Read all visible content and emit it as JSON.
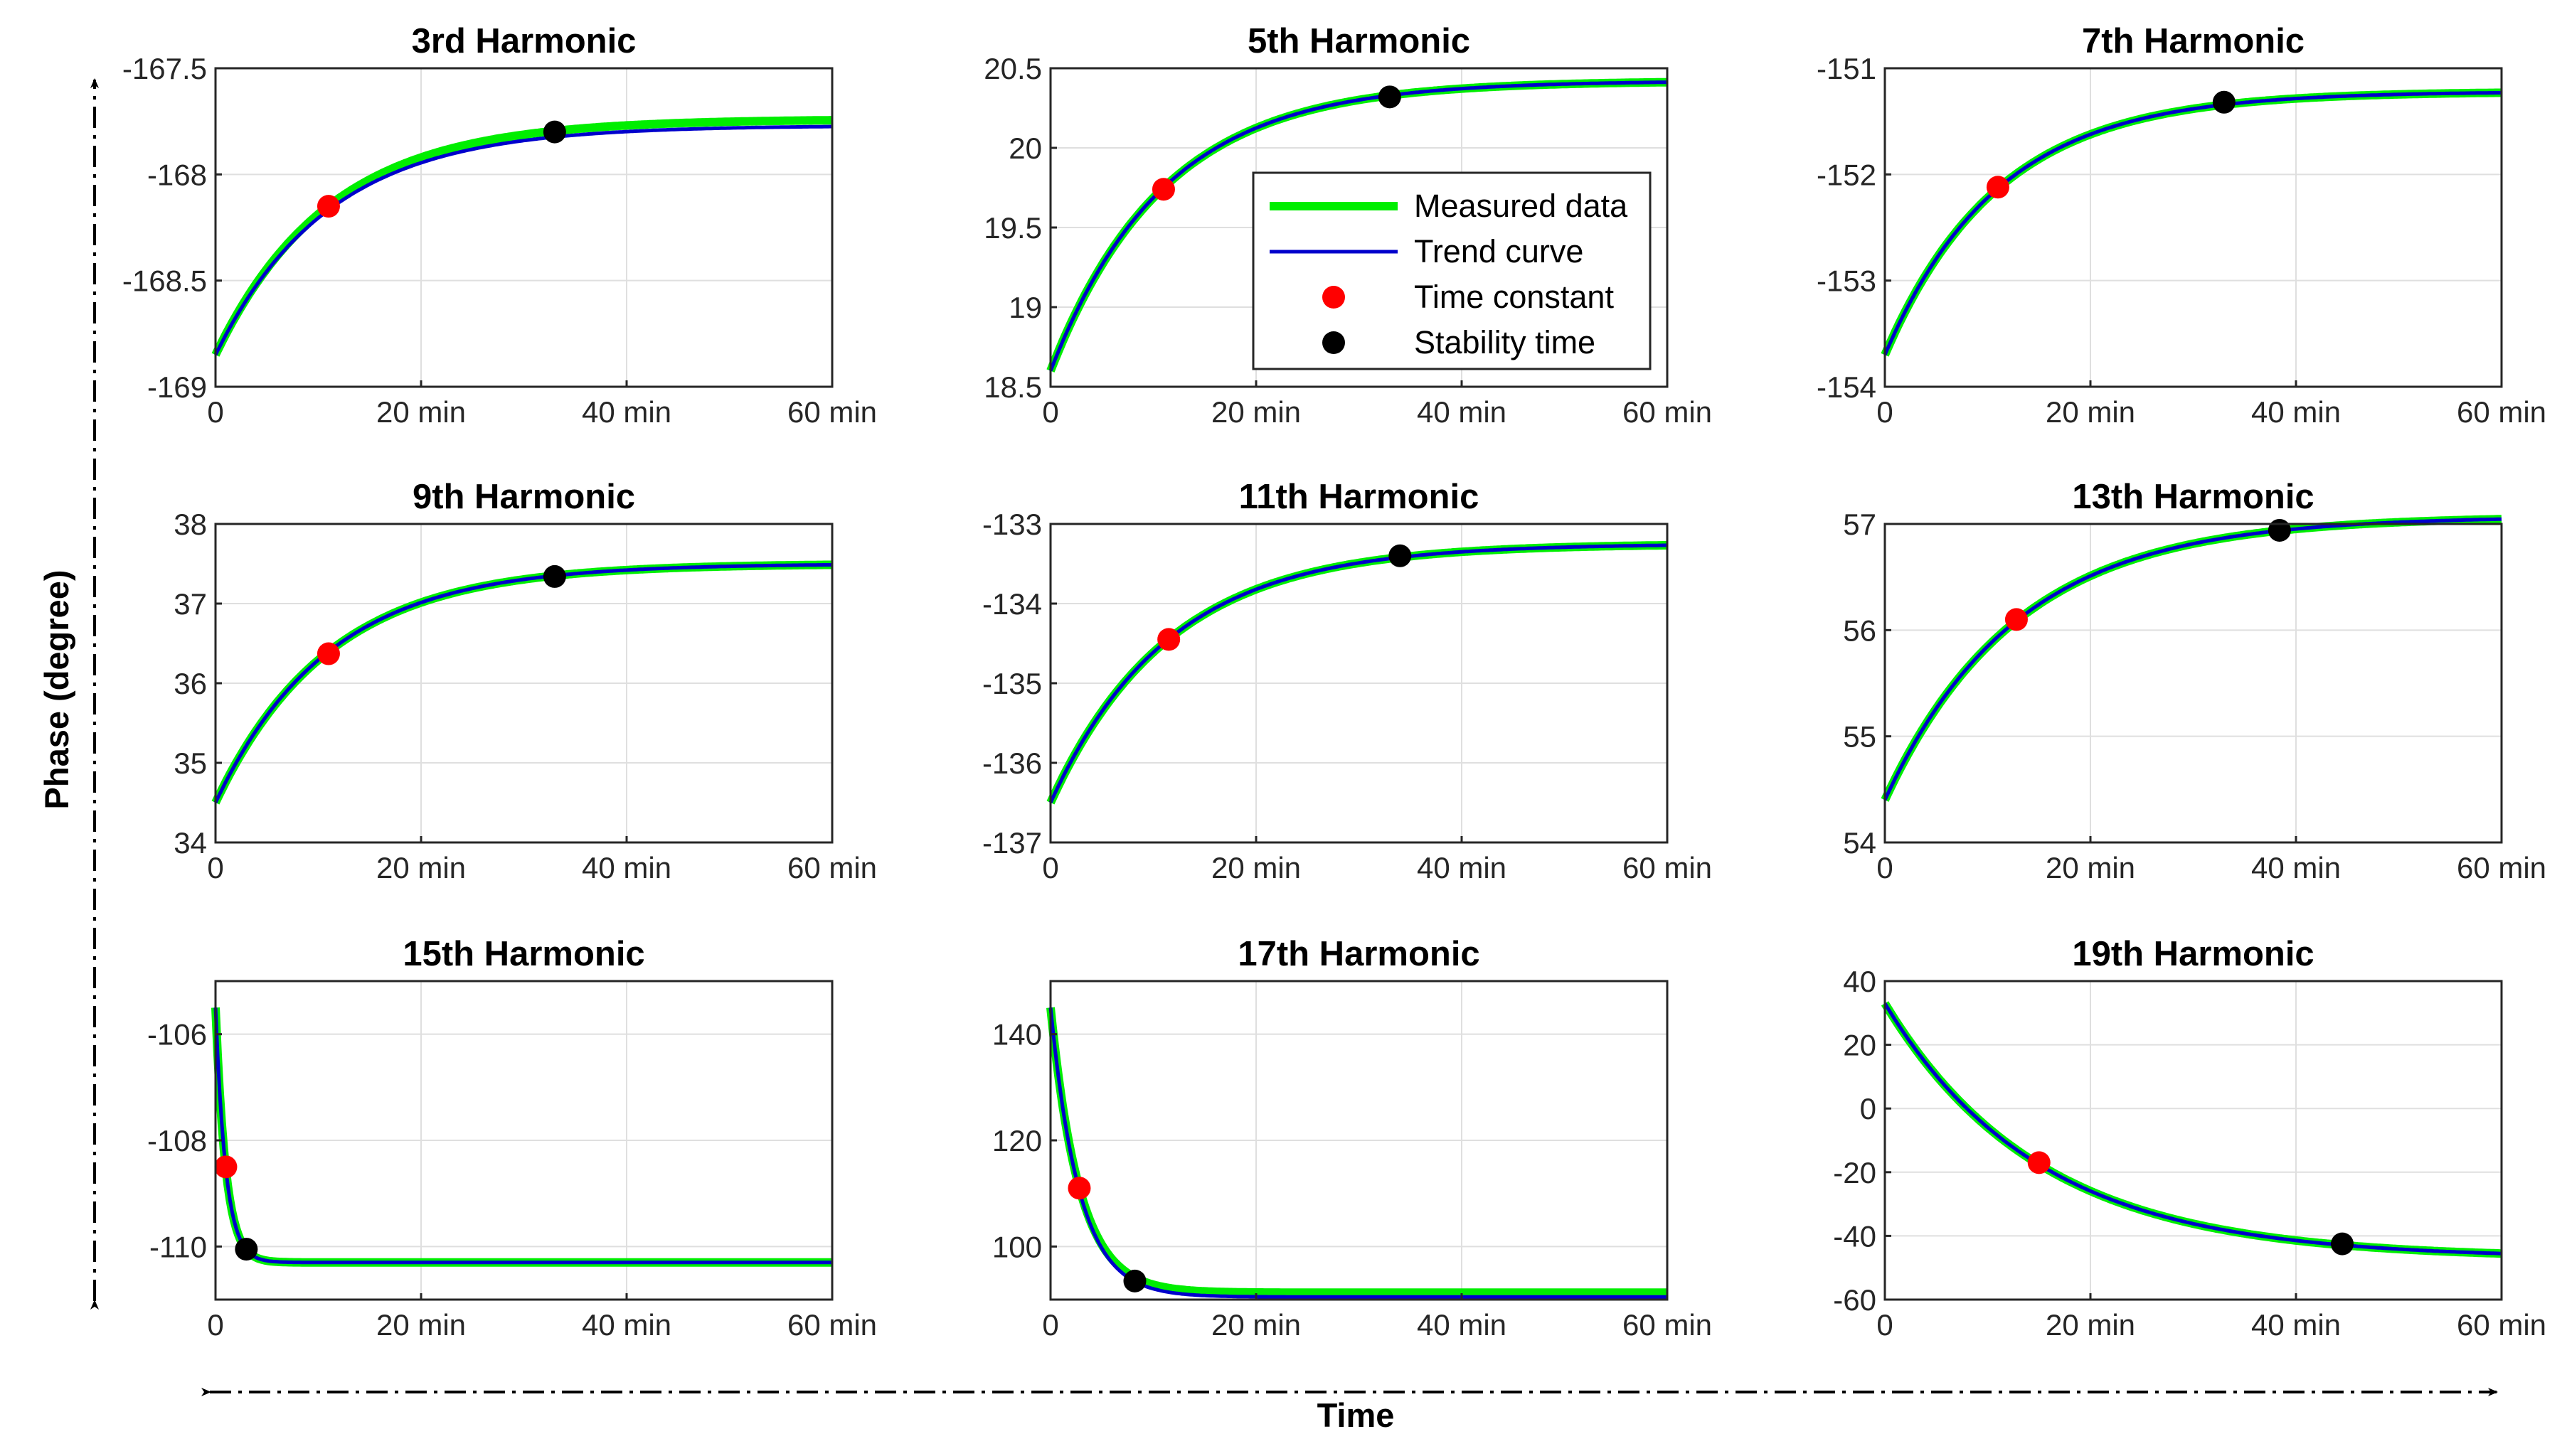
{
  "figure": {
    "xlabel": "Time",
    "ylabel": "Phase (degree)"
  },
  "legend": {
    "entries": [
      "Measured data",
      "Trend curve",
      "Time constant",
      "Stability time"
    ]
  },
  "colors": {
    "measured": "#00ee00",
    "trend": "#0000cc",
    "time_constant": "#ff0000",
    "stability": "#000000"
  },
  "chart_data": [
    {
      "type": "line",
      "title": "3rd Harmonic",
      "xlim": [
        0,
        60
      ],
      "ylim": [
        -169,
        -167.5
      ],
      "xticks": [
        0,
        20,
        40,
        60
      ],
      "xtick_labels": [
        "0",
        "20 min",
        "40 min",
        "60 min"
      ],
      "yticks": [
        -169,
        -168.5,
        -168,
        -167.5
      ],
      "ytick_labels": [
        "-169",
        "-168.5",
        "-168",
        "-167.5"
      ],
      "start": -168.85,
      "end": -167.77,
      "tau": 11,
      "measured_offset": 0.03,
      "time_constant": {
        "x": 11,
        "y": -168.15
      },
      "stability_time": {
        "x": 33,
        "y": -167.8
      }
    },
    {
      "type": "line",
      "title": "5th Harmonic",
      "xlim": [
        0,
        60
      ],
      "ylim": [
        18.5,
        20.5
      ],
      "xticks": [
        0,
        20,
        40,
        60
      ],
      "xtick_labels": [
        "0",
        "20 min",
        "40 min",
        "60 min"
      ],
      "yticks": [
        18.5,
        19,
        19.5,
        20,
        20.5
      ],
      "ytick_labels": [
        "18.5",
        "19",
        "19.5",
        "20",
        "20.5"
      ],
      "start": 18.6,
      "end": 20.42,
      "tau": 11,
      "measured_offset": 0,
      "time_constant": {
        "x": 11,
        "y": 19.74
      },
      "stability_time": {
        "x": 33,
        "y": 20.32
      },
      "legend": true
    },
    {
      "type": "line",
      "title": "7th Harmonic",
      "xlim": [
        0,
        60
      ],
      "ylim": [
        -154,
        -151
      ],
      "xticks": [
        0,
        20,
        40,
        60
      ],
      "xtick_labels": [
        "0",
        "20 min",
        "40 min",
        "60 min"
      ],
      "yticks": [
        -154,
        -153,
        -152,
        -151
      ],
      "ytick_labels": [
        "-154",
        "-153",
        "-152",
        "-151"
      ],
      "start": -153.7,
      "end": -151.22,
      "tau": 11,
      "measured_offset": 0,
      "time_constant": {
        "x": 11,
        "y": -152.12
      },
      "stability_time": {
        "x": 33,
        "y": -151.32
      }
    },
    {
      "type": "line",
      "title": "9th Harmonic",
      "xlim": [
        0,
        60
      ],
      "ylim": [
        34,
        38
      ],
      "xticks": [
        0,
        20,
        40,
        60
      ],
      "xtick_labels": [
        "0",
        "20 min",
        "40 min",
        "60 min"
      ],
      "yticks": [
        34,
        35,
        36,
        37,
        38
      ],
      "ytick_labels": [
        "34",
        "35",
        "36",
        "37",
        "38"
      ],
      "start": 34.5,
      "end": 37.5,
      "tau": 11,
      "measured_offset": 0,
      "time_constant": {
        "x": 11,
        "y": 36.37
      },
      "stability_time": {
        "x": 33,
        "y": 37.34
      }
    },
    {
      "type": "line",
      "title": "11th Harmonic",
      "xlim": [
        0,
        60
      ],
      "ylim": [
        -137,
        -133
      ],
      "xticks": [
        0,
        20,
        40,
        60
      ],
      "xtick_labels": [
        "0",
        "20 min",
        "40 min",
        "60 min"
      ],
      "yticks": [
        -137,
        -136,
        -135,
        -134,
        -133
      ],
      "ytick_labels": [
        "-137",
        "-136",
        "-135",
        "-134",
        "-133"
      ],
      "start": -136.5,
      "end": -133.25,
      "tau": 11.5,
      "measured_offset": 0,
      "time_constant": {
        "x": 11.5,
        "y": -134.45
      },
      "stability_time": {
        "x": 34,
        "y": -133.4
      }
    },
    {
      "type": "line",
      "title": "13th Harmonic",
      "xlim": [
        0,
        60
      ],
      "ylim": [
        54,
        57
      ],
      "xticks": [
        0,
        20,
        40,
        60
      ],
      "xtick_labels": [
        "0",
        "20 min",
        "40 min",
        "60 min"
      ],
      "yticks": [
        54,
        55,
        56,
        57
      ],
      "ytick_labels": [
        "54",
        "55",
        "56",
        "57"
      ],
      "start": 54.4,
      "end": 57.07,
      "tau": 12.8,
      "measured_offset": 0,
      "time_constant": {
        "x": 12.8,
        "y": 56.1
      },
      "stability_time": {
        "x": 38.4,
        "y": 56.94
      }
    },
    {
      "type": "line",
      "title": "15th Harmonic",
      "xlim": [
        0,
        60
      ],
      "ylim": [
        -111,
        -105
      ],
      "xticks": [
        0,
        20,
        40,
        60
      ],
      "xtick_labels": [
        "0",
        "20 min",
        "40 min",
        "60 min"
      ],
      "yticks": [
        -110,
        -108,
        -106
      ],
      "ytick_labels": [
        "-110",
        "-108",
        "-106"
      ],
      "start": -105.5,
      "end": -110.3,
      "tau": 1,
      "measured_offset": 0,
      "time_constant": {
        "x": 1,
        "y": -108.5
      },
      "stability_time": {
        "x": 3,
        "y": -110.05
      }
    },
    {
      "type": "line",
      "title": "17th Harmonic",
      "xlim": [
        0,
        60
      ],
      "ylim": [
        90,
        150
      ],
      "xticks": [
        0,
        20,
        40,
        60
      ],
      "xtick_labels": [
        "0",
        "20 min",
        "40 min",
        "60 min"
      ],
      "yticks": [
        100,
        120,
        140
      ],
      "ytick_labels": [
        "100",
        "120",
        "140"
      ],
      "start": 145,
      "end": 90.5,
      "tau": 2.8,
      "measured_offset": 0.8,
      "time_constant": {
        "x": 2.8,
        "y": 111
      },
      "stability_time": {
        "x": 8.2,
        "y": 93.5
      }
    },
    {
      "type": "line",
      "title": "19th Harmonic",
      "xlim": [
        0,
        60
      ],
      "ylim": [
        -60,
        40
      ],
      "xticks": [
        0,
        20,
        40,
        60
      ],
      "xtick_labels": [
        "0",
        "20 min",
        "40 min",
        "60 min"
      ],
      "yticks": [
        -60,
        -40,
        -20,
        0,
        20,
        40
      ],
      "ytick_labels": [
        "-60",
        "-40",
        "-20",
        "0",
        "20",
        "40"
      ],
      "start": 33,
      "end": -47,
      "tau": 15,
      "measured_offset": 0,
      "time_constant": {
        "x": 15,
        "y": -17
      },
      "stability_time": {
        "x": 44.5,
        "y": -42.5
      }
    }
  ]
}
